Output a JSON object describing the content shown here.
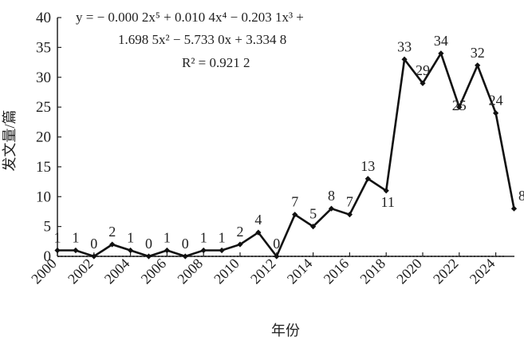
{
  "chart_data": {
    "type": "line",
    "x": [
      2000,
      2001,
      2002,
      2003,
      2004,
      2005,
      2006,
      2007,
      2008,
      2009,
      2010,
      2011,
      2012,
      2013,
      2014,
      2015,
      2016,
      2017,
      2018,
      2019,
      2020,
      2021,
      2022,
      2023,
      2024,
      2025
    ],
    "series": [
      {
        "values": [
          1,
          1,
          0,
          2,
          1,
          0,
          1,
          0,
          1,
          1,
          2,
          4,
          0,
          7,
          5,
          8,
          7,
          13,
          11,
          33,
          29,
          34,
          25,
          32,
          24,
          8
        ]
      }
    ],
    "trendline": {
      "type": "polynomial",
      "order": 5,
      "coefficients": [
        -0.0002,
        0.0104,
        -0.2031,
        1.6985,
        -5.733,
        3.3348
      ],
      "equation_line1": "y = − 0.000 2x⁵ + 0.010 4x⁴ − 0.203 1x³ +",
      "equation_line2": "1.698 5x² −  5.733 0x + 3.334 8",
      "r_squared": "R² = 0.921 2"
    },
    "xlabel": "年份",
    "ylabel": "发文量/篇",
    "ylim": [
      0,
      40
    ],
    "yticks": [
      0,
      5,
      10,
      15,
      20,
      25,
      30,
      35,
      40
    ],
    "xticks": [
      2000,
      2002,
      2004,
      2006,
      2008,
      2010,
      2012,
      2014,
      2016,
      2018,
      2020,
      2022,
      2024
    ],
    "grid": false,
    "legend": "none",
    "colors": {
      "line": "#111111",
      "trend": "#333333"
    }
  }
}
